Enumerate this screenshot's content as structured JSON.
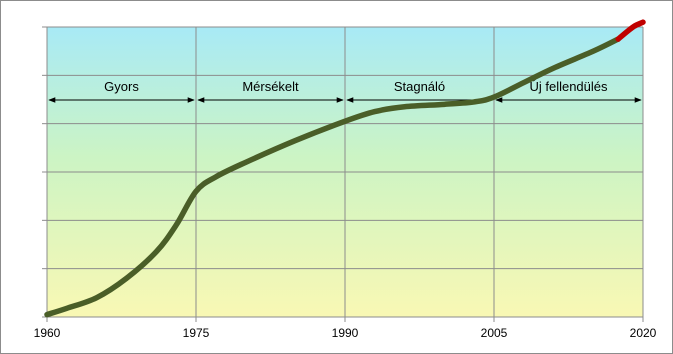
{
  "chart_data": {
    "type": "line",
    "title": "",
    "xlabel": "",
    "ylabel": "",
    "xlim": [
      1960,
      2020
    ],
    "ylim": [
      0,
      6
    ],
    "grid": true,
    "x_ticks": [
      "1960",
      "1975",
      "1990",
      "2005",
      "2020"
    ],
    "periods": [
      {
        "label": "Gyors",
        "start": 1960,
        "end": 1975
      },
      {
        "label": "Mérsékelt",
        "start": 1975,
        "end": 1990
      },
      {
        "label": "Stagnáló",
        "start": 1990,
        "end": 2005
      },
      {
        "label": "Új fellendülés",
        "start": 2005,
        "end": 2020
      }
    ],
    "series": [
      {
        "color": "#4a5e28",
        "x": [
          1960,
          1962,
          1965,
          1968,
          1971,
          1973,
          1975,
          1977,
          1980,
          1985,
          1990,
          1993,
          1996,
          2000,
          2003,
          2005,
          2008,
          2011,
          2015,
          2017.5
        ],
        "y": [
          0.05,
          0.18,
          0.4,
          0.8,
          1.35,
          1.9,
          2.6,
          2.9,
          3.2,
          3.65,
          4.05,
          4.25,
          4.35,
          4.4,
          4.45,
          4.55,
          4.85,
          5.15,
          5.5,
          5.75
        ]
      },
      {
        "color": "#c00000",
        "x": [
          2017.5,
          2019,
          2020
        ],
        "y": [
          5.75,
          6.0,
          6.1
        ]
      }
    ],
    "background_gradient": [
      "#a8eaf6",
      "#ccf4c4",
      "#f9f8b4"
    ],
    "gridline_color": "#8c8c8c",
    "arrow_color": "#000000"
  }
}
